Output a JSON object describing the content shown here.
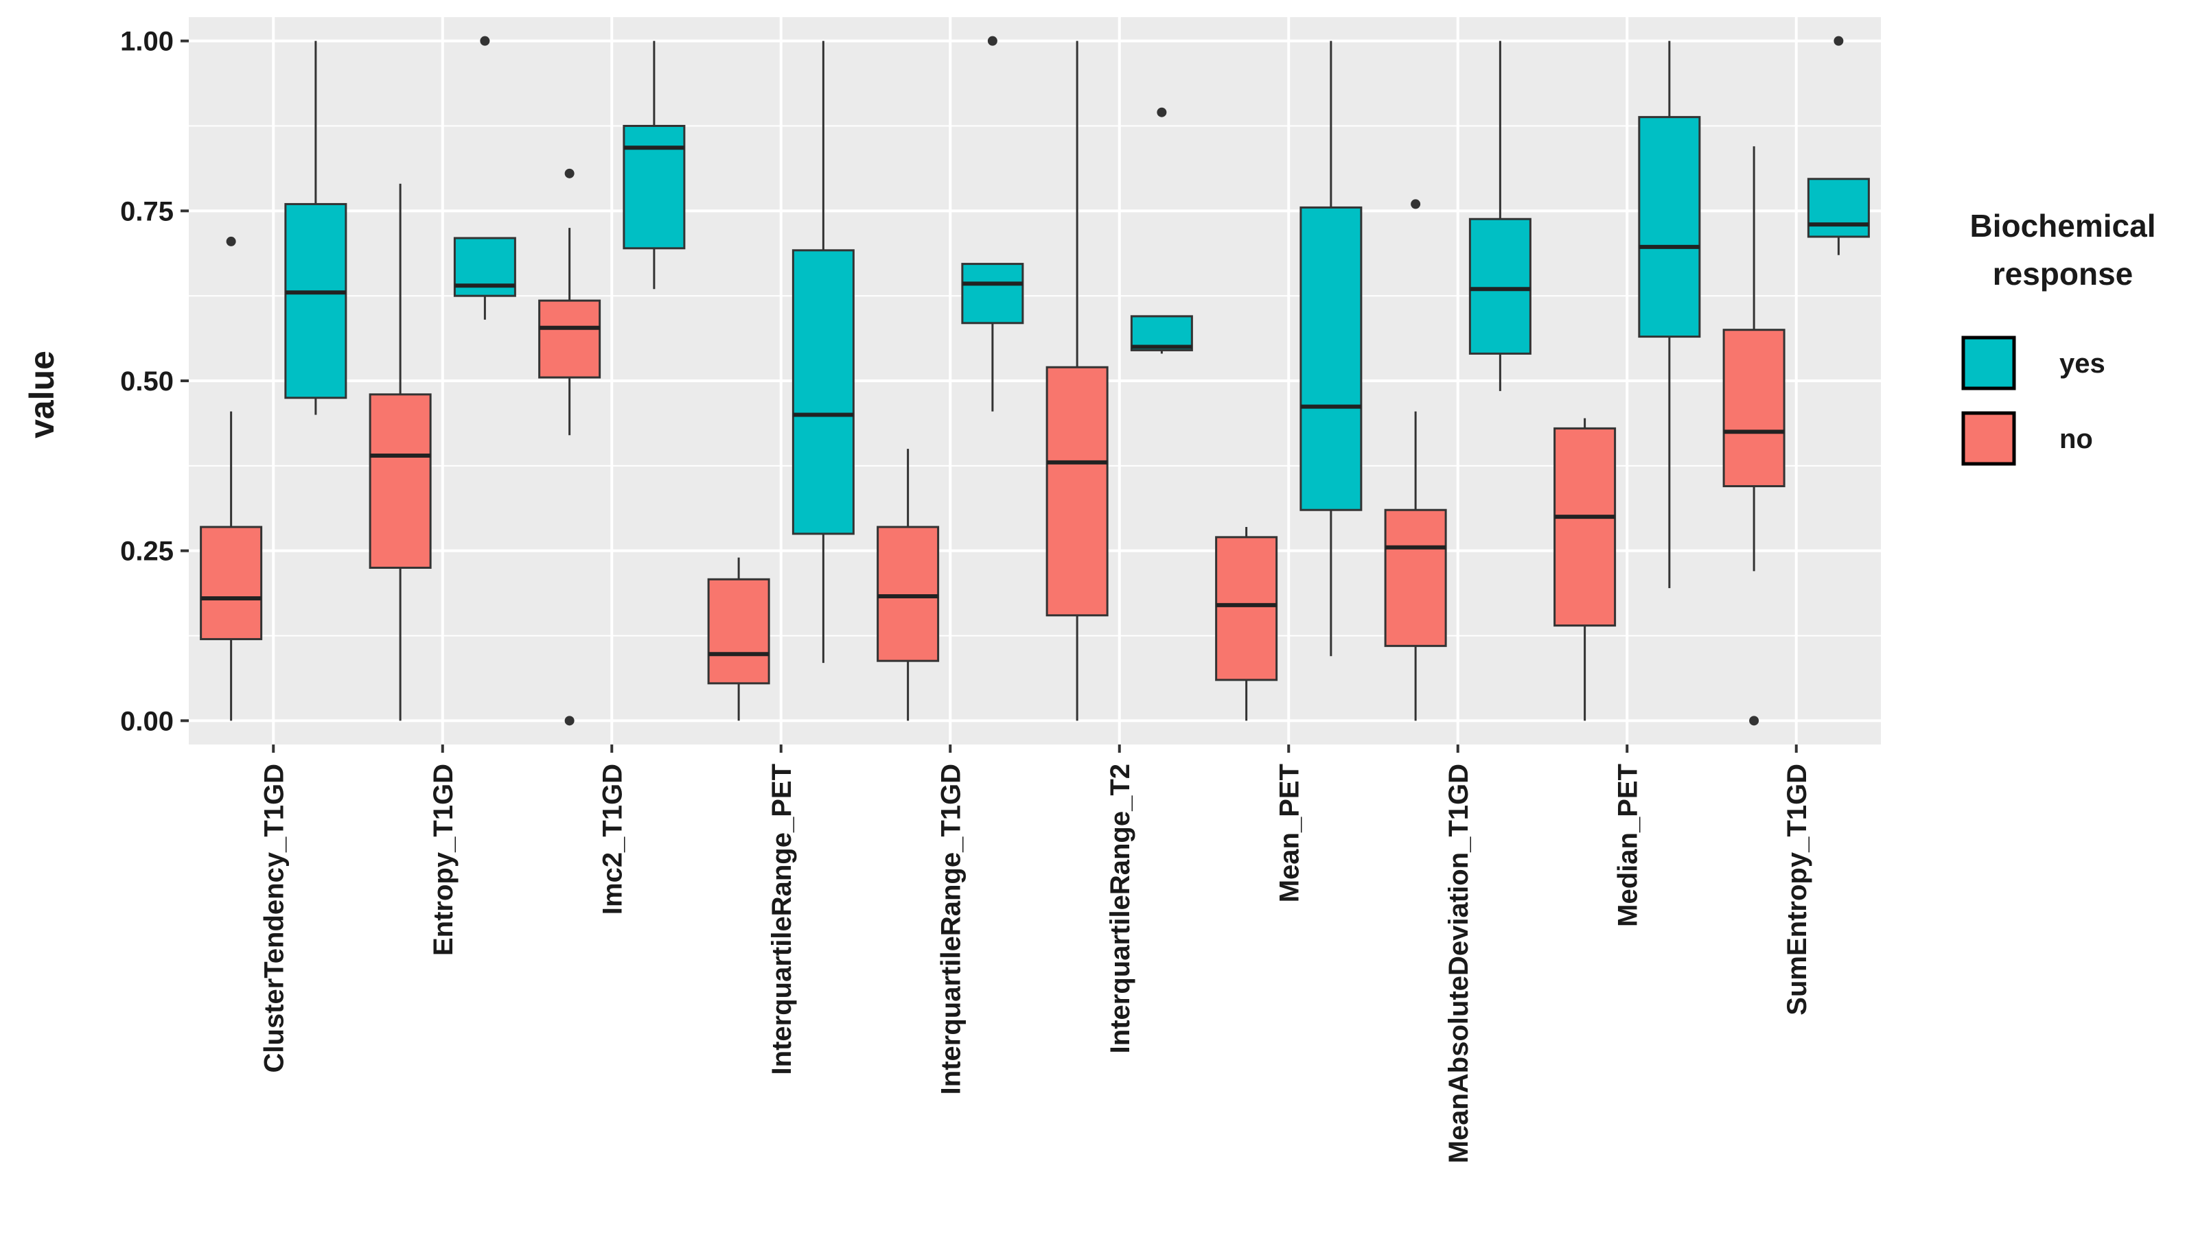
{
  "chart_data": {
    "type": "boxplot",
    "title": "",
    "xlabel": "",
    "ylabel": "value",
    "ylim": [
      -0.035,
      1.035
    ],
    "yticks": [
      0.0,
      0.25,
      0.5,
      0.75,
      1.0
    ],
    "ytick_labels": [
      "0.00",
      "0.25",
      "0.50",
      "0.75",
      "1.00"
    ],
    "grid": true,
    "legend": {
      "title_line1": "Biochemical",
      "title_line2": "response",
      "position": "right",
      "entries": [
        {
          "key": "yes",
          "label": "yes",
          "color": "#00BFC4"
        },
        {
          "key": "no",
          "label": "no",
          "color": "#F8766D"
        }
      ]
    },
    "colors": {
      "yes": "#00BFC4",
      "no": "#F8766D",
      "panel": "#EBEBEB",
      "grid": "#FFFFFF",
      "outline": "#333333"
    },
    "categories": [
      "ClusterTendency_T1GD",
      "Entropy_T1GD",
      "Imc2_T1GD",
      "InterquartileRange_PET",
      "InterquartileRange_T1GD",
      "InterquartileRange_T2",
      "Mean_PET",
      "MeanAbsoluteDeviation_T1GD",
      "Median_PET",
      "SumEntropy_T1GD"
    ],
    "series": [
      {
        "name": "no",
        "boxes": [
          {
            "min": 0.0,
            "q1": 0.12,
            "median": 0.18,
            "q3": 0.285,
            "max": 0.455,
            "outliers": [
              0.705
            ]
          },
          {
            "min": 0.0,
            "q1": 0.225,
            "median": 0.39,
            "q3": 0.48,
            "max": 0.79,
            "outliers": []
          },
          {
            "min": 0.42,
            "q1": 0.505,
            "median": 0.578,
            "q3": 0.618,
            "max": 0.725,
            "outliers": [
              0.805,
              0.0
            ]
          },
          {
            "min": 0.0,
            "q1": 0.055,
            "median": 0.098,
            "q3": 0.208,
            "max": 0.24,
            "outliers": []
          },
          {
            "min": 0.0,
            "q1": 0.088,
            "median": 0.183,
            "q3": 0.285,
            "max": 0.4,
            "outliers": []
          },
          {
            "min": 0.0,
            "q1": 0.155,
            "median": 0.38,
            "q3": 0.52,
            "max": 1.0,
            "outliers": []
          },
          {
            "min": 0.0,
            "q1": 0.06,
            "median": 0.17,
            "q3": 0.27,
            "max": 0.285,
            "outliers": []
          },
          {
            "min": 0.0,
            "q1": 0.11,
            "median": 0.255,
            "q3": 0.31,
            "max": 0.455,
            "outliers": [
              0.76
            ]
          },
          {
            "min": 0.0,
            "q1": 0.14,
            "median": 0.3,
            "q3": 0.43,
            "max": 0.445,
            "outliers": []
          },
          {
            "min": 0.22,
            "q1": 0.345,
            "median": 0.425,
            "q3": 0.575,
            "max": 0.845,
            "outliers": [
              0.0
            ]
          }
        ]
      },
      {
        "name": "yes",
        "boxes": [
          {
            "min": 0.45,
            "q1": 0.475,
            "median": 0.63,
            "q3": 0.76,
            "max": 1.0,
            "outliers": []
          },
          {
            "min": 0.59,
            "q1": 0.625,
            "median": 0.64,
            "q3": 0.71,
            "max": 0.71,
            "outliers": [
              1.0
            ]
          },
          {
            "min": 0.635,
            "q1": 0.695,
            "median": 0.843,
            "q3": 0.875,
            "max": 1.0,
            "outliers": []
          },
          {
            "min": 0.085,
            "q1": 0.275,
            "median": 0.45,
            "q3": 0.692,
            "max": 1.0,
            "outliers": []
          },
          {
            "min": 0.455,
            "q1": 0.585,
            "median": 0.643,
            "q3": 0.672,
            "max": 0.672,
            "outliers": [
              1.0
            ]
          },
          {
            "min": 0.54,
            "q1": 0.545,
            "median": 0.55,
            "q3": 0.595,
            "max": 0.595,
            "outliers": [
              0.895
            ]
          },
          {
            "min": 0.095,
            "q1": 0.31,
            "median": 0.462,
            "q3": 0.755,
            "max": 1.0,
            "outliers": []
          },
          {
            "min": 0.485,
            "q1": 0.54,
            "median": 0.635,
            "q3": 0.738,
            "max": 1.0,
            "outliers": []
          },
          {
            "min": 0.195,
            "q1": 0.565,
            "median": 0.697,
            "q3": 0.888,
            "max": 1.0,
            "outliers": []
          },
          {
            "min": 0.685,
            "q1": 0.712,
            "median": 0.73,
            "q3": 0.797,
            "max": 0.797,
            "outliers": [
              1.0
            ]
          }
        ]
      }
    ]
  }
}
